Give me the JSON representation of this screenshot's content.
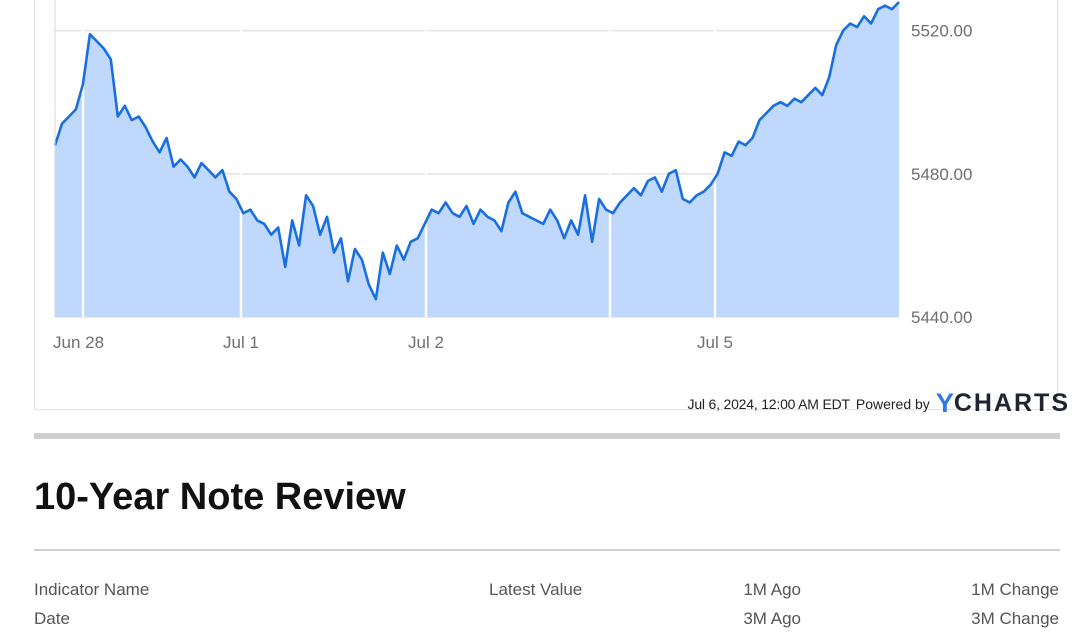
{
  "chart_data": {
    "type": "area",
    "x_tick_labels": [
      "Jun 28",
      "Jul 1",
      "Jul 2",
      "Jul 5"
    ],
    "y_tick_labels": [
      "5520.00",
      "5480.00",
      "5440.00"
    ],
    "y_ticks": [
      5520,
      5480,
      5440
    ],
    "ylim": [
      5440,
      5528
    ],
    "grid": true,
    "series": [
      {
        "values": [
          5488,
          5494,
          5496,
          5498,
          5505,
          5519,
          5517,
          5515,
          5512,
          5496,
          5499,
          5495,
          5496,
          5493,
          5489,
          5486,
          5490,
          5482,
          5484,
          5482,
          5479,
          5483,
          5481,
          5479,
          5481,
          5475,
          5473,
          5469,
          5470,
          5467,
          5466,
          5463,
          5465,
          5454,
          5467,
          5460,
          5474,
          5471,
          5463,
          5468,
          5458,
          5462,
          5450,
          5459,
          5456,
          5449,
          5445,
          5458,
          5452,
          5460,
          5456,
          5461,
          5462,
          5466,
          5470,
          5469,
          5472,
          5469,
          5468,
          5471,
          5466,
          5470,
          5468,
          5467,
          5464,
          5472,
          5475,
          5469,
          5468,
          5467,
          5466,
          5470,
          5467,
          5462,
          5467,
          5463,
          5474,
          5461,
          5473,
          5470,
          5469,
          5472,
          5474,
          5476,
          5474,
          5478,
          5479,
          5475,
          5480,
          5481,
          5473,
          5472,
          5474,
          5475,
          5477,
          5480,
          5486,
          5485,
          5489,
          5488,
          5490,
          5495,
          5497,
          5499,
          5500,
          5499,
          5501,
          5500,
          5502,
          5504,
          5502,
          5507,
          5516,
          5520,
          5522,
          5521,
          5524,
          5522,
          5526,
          5527,
          5526,
          5528
        ]
      }
    ]
  },
  "footer": {
    "timestamp": "Jul 6, 2024, 12:00 AM EDT",
    "powered_by": "Powered by",
    "brand_y": "Y",
    "brand_text": "CHARTS"
  },
  "section": {
    "title": "10-Year Note Review"
  },
  "table": {
    "headers_row1": [
      "Indicator Name",
      "Latest Value",
      "1M Ago",
      "1M Change"
    ],
    "headers_row2": [
      "Date",
      "3M Ago",
      "3M Change"
    ]
  },
  "colors": {
    "line": "#1a6fe0",
    "fill": "#bfd8fb",
    "grid": "#e2e2e2"
  }
}
